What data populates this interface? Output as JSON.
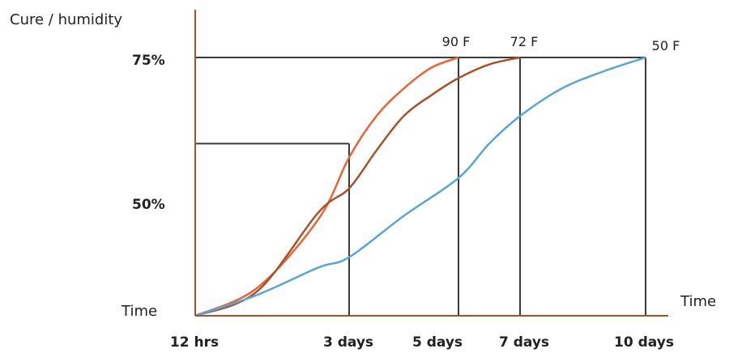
{
  "chart_data": {
    "type": "line",
    "ylabel": "Cure / humidity",
    "xlabel": "Time",
    "origin_label": "Time",
    "y_ticks": [
      {
        "label": "75%",
        "value": 75
      },
      {
        "label": "50%",
        "value": 50
      }
    ],
    "x_ticks": [
      {
        "label": "12 hrs",
        "value": 0.5
      },
      {
        "label": "3 days",
        "value": 3
      },
      {
        "label": "5 days",
        "value": 5
      },
      {
        "label": "7 days",
        "value": 7
      },
      {
        "label": "10 days",
        "value": 10
      }
    ],
    "series": [
      {
        "name": "90 F",
        "color": "#e8643a",
        "points": [
          [
            0.5,
            0
          ],
          [
            1.5,
            8
          ],
          [
            2.5,
            28
          ],
          [
            3,
            46
          ],
          [
            3.5,
            58
          ],
          [
            4,
            66
          ],
          [
            4.5,
            72
          ],
          [
            5,
            75
          ]
        ]
      },
      {
        "name": "72 F",
        "color": "#a8522a",
        "points": [
          [
            0.5,
            0
          ],
          [
            1.5,
            7
          ],
          [
            2.5,
            30
          ],
          [
            3,
            37
          ],
          [
            3.5,
            48
          ],
          [
            4,
            58
          ],
          [
            4.5,
            64
          ],
          [
            5,
            69
          ],
          [
            6,
            73
          ],
          [
            7,
            75
          ]
        ]
      },
      {
        "name": "50 F",
        "color": "#5aa5d8",
        "points": [
          [
            0.5,
            0
          ],
          [
            1.5,
            6
          ],
          [
            2.5,
            14
          ],
          [
            3,
            17
          ],
          [
            4,
            29
          ],
          [
            5,
            40
          ],
          [
            6,
            50
          ],
          [
            7,
            58
          ],
          [
            8,
            66
          ],
          [
            9,
            71
          ],
          [
            10,
            75
          ]
        ]
      }
    ],
    "reference_lines": [
      {
        "x": 3,
        "y": 50
      },
      {
        "x": 5,
        "y": 75
      },
      {
        "x": 7,
        "y": 75
      },
      {
        "x": 10,
        "y": 75
      }
    ],
    "xlim": [
      0.5,
      10
    ],
    "ylim": [
      0,
      75
    ],
    "grid": false
  }
}
